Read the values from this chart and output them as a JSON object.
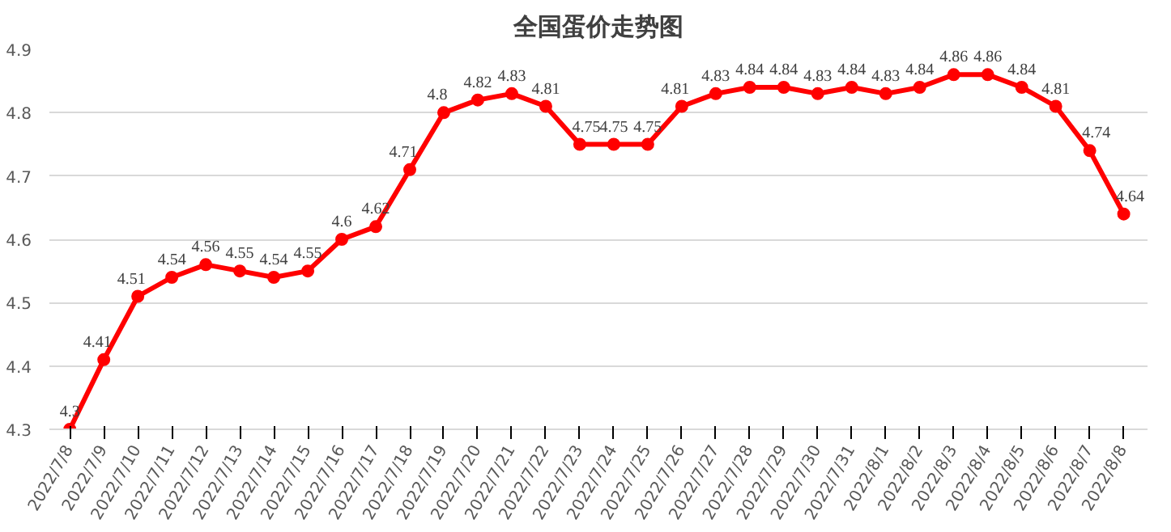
{
  "chart_data": {
    "type": "line",
    "title": "全国蛋价走势图",
    "categories": [
      "2022/7/8",
      "2022/7/9",
      "2022/7/10",
      "2022/7/11",
      "2022/7/12",
      "2022/7/13",
      "2022/7/14",
      "2022/7/15",
      "2022/7/16",
      "2022/7/17",
      "2022/7/18",
      "2022/7/19",
      "2022/7/20",
      "2022/7/21",
      "2022/7/22",
      "2022/7/23",
      "2022/7/24",
      "2022/7/25",
      "2022/7/26",
      "2022/7/27",
      "2022/7/28",
      "2022/7/29",
      "2022/7/30",
      "2022/7/31",
      "2022/8/1",
      "2022/8/2",
      "2022/8/3",
      "2022/8/4",
      "2022/8/5",
      "2022/8/6",
      "2022/8/7",
      "2022/8/8"
    ],
    "series": [
      {
        "color": "#ff0000",
        "values": [
          4.3,
          4.41,
          4.51,
          4.54,
          4.56,
          4.55,
          4.54,
          4.55,
          4.6,
          4.62,
          4.71,
          4.8,
          4.82,
          4.83,
          4.81,
          4.75,
          4.75,
          4.75,
          4.81,
          4.83,
          4.84,
          4.84,
          4.83,
          4.84,
          4.83,
          4.84,
          4.86,
          4.86,
          4.84,
          4.81,
          4.74,
          4.64
        ]
      }
    ],
    "ylim": [
      4.3,
      4.9
    ],
    "yticks": [
      4.3,
      4.4,
      4.5,
      4.6,
      4.7,
      4.8,
      4.9
    ],
    "grid": "y",
    "marker": "circle",
    "line_style": "solid",
    "data_labels": true
  }
}
